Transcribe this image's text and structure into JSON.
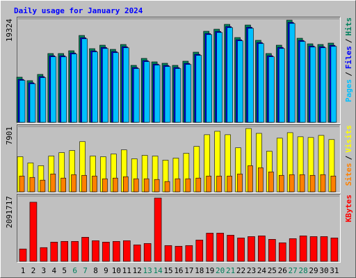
{
  "chart_data": [
    {
      "type": "bar",
      "title": "Daily usage for January 2024",
      "legend_separator": "/",
      "ylim": [
        0,
        19324
      ],
      "yticks": [
        19324
      ],
      "series": [
        {
          "name": "Hits",
          "color": "#00805c",
          "values": [
            8430,
            7782,
            8949,
            12840,
            12840,
            13359,
            16212,
            13748,
            14396,
            13618,
            14526,
            10635,
            11932,
            11284,
            11024,
            10635,
            11413,
            13099,
            16990,
            17379,
            18287,
            15823,
            18157,
            15304,
            12840,
            14396,
            19065,
            15693,
            14655,
            14526,
            14785
          ]
        },
        {
          "name": "Files",
          "color": "#0000ff",
          "values": [
            8020,
            7390,
            8540,
            12430,
            12420,
            12950,
            15790,
            13340,
            13980,
            13200,
            14110,
            10230,
            11520,
            10870,
            10610,
            10230,
            11000,
            12690,
            16570,
            16960,
            17870,
            15410,
            17740,
            14890,
            12430,
            13980,
            18650,
            15280,
            14240,
            14110,
            14370
          ]
        },
        {
          "name": "Pages",
          "color": "#00c0ff",
          "values": [
            7830,
            7190,
            8340,
            12230,
            12220,
            12750,
            15590,
            13140,
            13780,
            13000,
            13910,
            10030,
            11320,
            10670,
            10410,
            10030,
            10800,
            12490,
            16370,
            16760,
            17670,
            15210,
            17540,
            14690,
            12230,
            13780,
            18450,
            15080,
            14040,
            13910,
            14170
          ]
        }
      ]
    },
    {
      "type": "bar",
      "legend_separator": "/",
      "ylim": [
        0,
        7901
      ],
      "yticks": [
        7901
      ],
      "series": [
        {
          "name": "Visits",
          "color": "#ffff00",
          "values": [
            4243,
            3493,
            3160,
            4325,
            4741,
            4990,
            6071,
            4325,
            4242,
            4574,
            5073,
            3992,
            4408,
            4325,
            3826,
            4075,
            4657,
            5489,
            6903,
            7319,
            6903,
            5323,
            7652,
            7069,
            4907,
            6487,
            7153,
            6654,
            6570,
            6820,
            6321
          ]
        },
        {
          "name": "Sites",
          "color": "#ff8000",
          "values": [
            1913,
            1747,
            1414,
            2163,
            1664,
            2080,
            1996,
            1913,
            1580,
            1664,
            1830,
            1580,
            1580,
            1497,
            1248,
            1580,
            1580,
            1664,
            1913,
            1913,
            1913,
            2163,
            3160,
            2911,
            2412,
            1996,
            2080,
            2080,
            1996,
            2080,
            1913
          ]
        }
      ]
    },
    {
      "type": "bar",
      "ylim": [
        0,
        2091717
      ],
      "yticks": [
        2091717
      ],
      "categories": [
        "1",
        "2",
        "3",
        "4",
        "5",
        "6",
        "7",
        "8",
        "9",
        "10",
        "11",
        "12",
        "13",
        "14",
        "15",
        "16",
        "17",
        "18",
        "19",
        "20",
        "21",
        "22",
        "23",
        "24",
        "25",
        "26",
        "27",
        "28",
        "29",
        "30",
        "31"
      ],
      "category_colors": [
        "#000000",
        "#000000",
        "#000000",
        "#000000",
        "#000000",
        "#00805c",
        "#00805c",
        "#000000",
        "#000000",
        "#000000",
        "#000000",
        "#000000",
        "#00805c",
        "#00805c",
        "#000000",
        "#000000",
        "#000000",
        "#000000",
        "#000000",
        "#00805c",
        "#00805c",
        "#000000",
        "#000000",
        "#000000",
        "#000000",
        "#000000",
        "#00805c",
        "#00805c",
        "#000000",
        "#000000",
        "#000000"
      ],
      "series": [
        {
          "name": "KBytes",
          "color": "#ff0000",
          "values": [
            396000,
            1893000,
            440000,
            616000,
            639000,
            639000,
            771000,
            661000,
            616000,
            639000,
            661000,
            528000,
            572000,
            2026000,
            506000,
            484000,
            506000,
            683000,
            903000,
            903000,
            837000,
            749000,
            793000,
            815000,
            705000,
            594000,
            727000,
            815000,
            793000,
            793000,
            749000
          ]
        }
      ]
    }
  ]
}
